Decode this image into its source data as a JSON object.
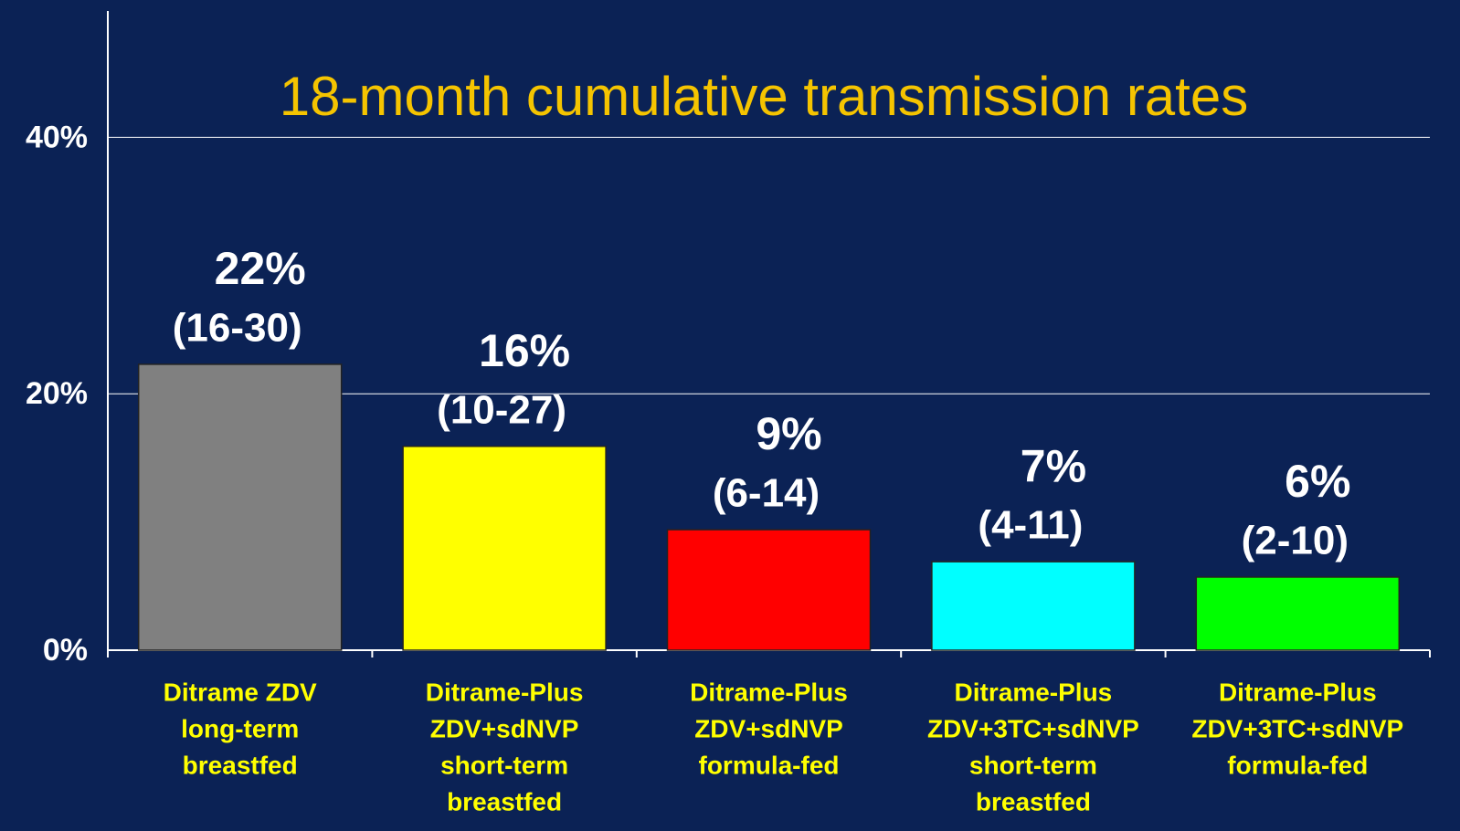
{
  "chart_data": {
    "type": "bar",
    "title": "18-month cumulative transmission rates",
    "categories": [
      [
        "Ditrame ZDV",
        "long-term",
        "breastfed"
      ],
      [
        "Ditrame-Plus",
        "ZDV+sdNVP",
        "short-term",
        "breastfed"
      ],
      [
        "Ditrame-Plus",
        "ZDV+sdNVP",
        "formula-fed"
      ],
      [
        "Ditrame-Plus",
        "ZDV+3TC+sdNVP",
        "short-term",
        "breastfed"
      ],
      [
        "Ditrame-Plus",
        "ZDV+3TC+sdNVP",
        "formula-fed"
      ]
    ],
    "values": [
      22.3,
      15.9,
      9.4,
      6.9,
      5.7
    ],
    "value_labels": [
      "22%",
      "16%",
      "9%",
      "7%",
      "6%"
    ],
    "ci_labels": [
      "(16-30)",
      "(10-27)",
      "(6-14)",
      "(4-11)",
      "(2-10)"
    ],
    "colors": [
      "#808080",
      "#ffff00",
      "#ff0000",
      "#00ffff",
      "#00ff00"
    ],
    "ylim": [
      0,
      50
    ],
    "yticks": [
      {
        "value": 0,
        "label": "0%"
      },
      {
        "value": 20,
        "label": "20%"
      },
      {
        "value": 40,
        "label": "40%"
      }
    ],
    "grid": true
  }
}
